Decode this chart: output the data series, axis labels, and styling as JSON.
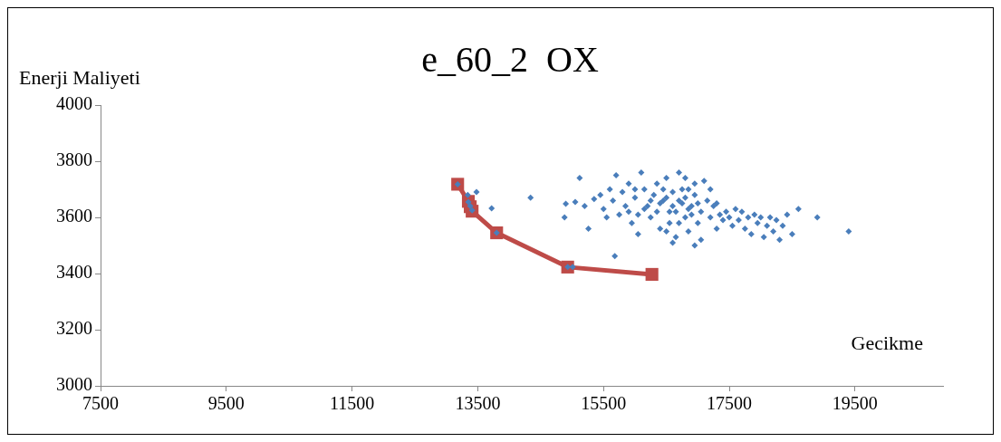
{
  "chart_data": {
    "type": "scatter",
    "title": "e_60_2  OX",
    "xlabel": "Gecikme",
    "ylabel": "Enerji Maliyeti",
    "xlim": [
      7500,
      20900
    ],
    "xticks": [
      7500,
      9500,
      11500,
      13500,
      15500,
      17500,
      19500
    ],
    "ylim": [
      3000,
      4000
    ],
    "yticks": [
      3000,
      3200,
      3400,
      3600,
      3800,
      4000
    ],
    "grid": false,
    "legend": false,
    "series": [
      {
        "type": "scatter",
        "color": "#4a7ebb",
        "marker": "diamond",
        "x": [
          13180,
          13340,
          13350,
          13380,
          13410,
          13480,
          13720,
          13800,
          14340,
          14930,
          15010,
          14900,
          14880,
          15120,
          15260,
          15680,
          15050,
          15200,
          15350,
          15450,
          15500,
          15550,
          15600,
          15650,
          15700,
          15750,
          15800,
          15850,
          15900,
          15950,
          16000,
          16050,
          16100,
          16150,
          16200,
          16250,
          16300,
          16350,
          16400,
          16450,
          16500,
          16550,
          16600,
          16650,
          16700,
          16750,
          16800,
          16850,
          16900,
          16950,
          17000,
          17050,
          17100,
          17150,
          17200,
          17250,
          17300,
          17350,
          17400,
          17450,
          17500,
          17550,
          17600,
          17650,
          17700,
          17750,
          17800,
          17850,
          17900,
          17950,
          18000,
          18050,
          18100,
          18150,
          18200,
          18250,
          18300,
          18350,
          18420,
          18500,
          18600,
          18900,
          19400,
          16400,
          16500,
          16600,
          16650,
          16700,
          16750,
          16800,
          16850,
          16900,
          16950,
          17000,
          16550,
          16450,
          16350,
          16250,
          16150,
          16050,
          16700,
          16850,
          17050,
          16950,
          16600,
          17200,
          17300,
          15900,
          16000,
          16500,
          16800
        ],
        "values": [
          3718,
          3680,
          3655,
          3640,
          3625,
          3690,
          3632,
          3545,
          3670,
          3423,
          3423,
          3648,
          3600,
          3740,
          3560,
          3462,
          3655,
          3640,
          3665,
          3680,
          3630,
          3600,
          3700,
          3660,
          3750,
          3610,
          3690,
          3640,
          3720,
          3580,
          3670,
          3540,
          3760,
          3700,
          3640,
          3600,
          3680,
          3720,
          3560,
          3660,
          3740,
          3620,
          3690,
          3530,
          3760,
          3650,
          3600,
          3700,
          3640,
          3680,
          3580,
          3620,
          3730,
          3660,
          3600,
          3640,
          3560,
          3610,
          3590,
          3620,
          3600,
          3570,
          3630,
          3590,
          3620,
          3560,
          3600,
          3540,
          3610,
          3580,
          3600,
          3530,
          3570,
          3600,
          3550,
          3590,
          3520,
          3570,
          3610,
          3540,
          3630,
          3600,
          3550,
          3650,
          3670,
          3640,
          3620,
          3660,
          3700,
          3670,
          3630,
          3610,
          3720,
          3650,
          3580,
          3700,
          3620,
          3660,
          3630,
          3610,
          3580,
          3550,
          3520,
          3500,
          3510,
          3700,
          3650,
          3620,
          3700,
          3550,
          3740
        ]
      },
      {
        "type": "line",
        "color": "#be4b48",
        "marker": "square",
        "line_style": "solid",
        "x": [
          13180,
          13350,
          13380,
          13410,
          13800,
          14930,
          16270
        ],
        "values": [
          3718,
          3657,
          3638,
          3622,
          3545,
          3423,
          3397
        ]
      }
    ]
  }
}
